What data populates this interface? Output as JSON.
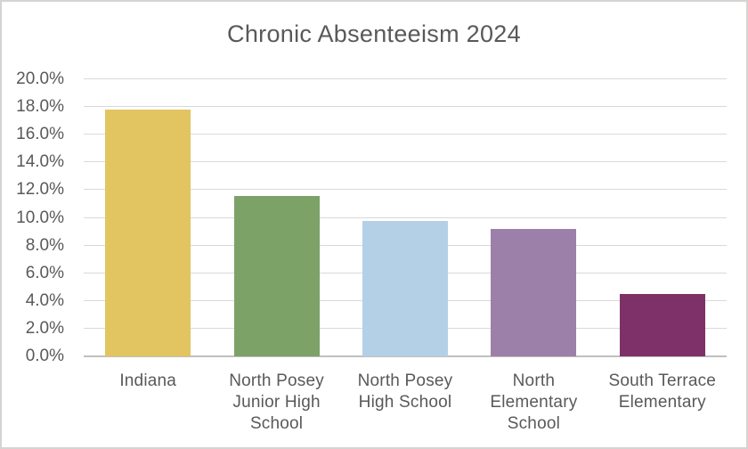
{
  "chart_data": {
    "type": "bar",
    "title": "Chronic Absenteeism 2024",
    "categories": [
      "Indiana",
      "North Posey Junior High School",
      "North Posey High School",
      "North Elementary School",
      "South Terrace Elementary"
    ],
    "category_lines": [
      [
        "Indiana"
      ],
      [
        "North Posey",
        "Junior High",
        "School"
      ],
      [
        "North Posey",
        "High School"
      ],
      [
        "North",
        "Elementary",
        "School"
      ],
      [
        "South Terrace",
        "Elementary"
      ]
    ],
    "values": [
      17.8,
      11.6,
      9.8,
      9.2,
      4.5
    ],
    "value_unit": "%",
    "bar_colors": [
      "#e2c461",
      "#7ca268",
      "#b4d0e7",
      "#9c80a9",
      "#7d3168"
    ],
    "xlabel": "",
    "ylabel": "",
    "ylim": [
      0,
      20
    ],
    "y_axis": {
      "min": 0,
      "max": 20,
      "tick_values": [
        0,
        2,
        4,
        6,
        8,
        10,
        12,
        14,
        16,
        18,
        20
      ],
      "tick_labels": [
        "0.0%",
        "2.0%",
        "4.0%",
        "6.0%",
        "8.0%",
        "10.0%",
        "12.0%",
        "14.0%",
        "16.0%",
        "18.0%",
        "20.0%"
      ]
    },
    "grid": true,
    "legend": "none"
  },
  "colors": {
    "text": "#595959",
    "gridline": "#d9d9d9",
    "axis_line": "#bfbfbf",
    "background": "#ffffff",
    "frame_border": "#d6d3d3"
  }
}
